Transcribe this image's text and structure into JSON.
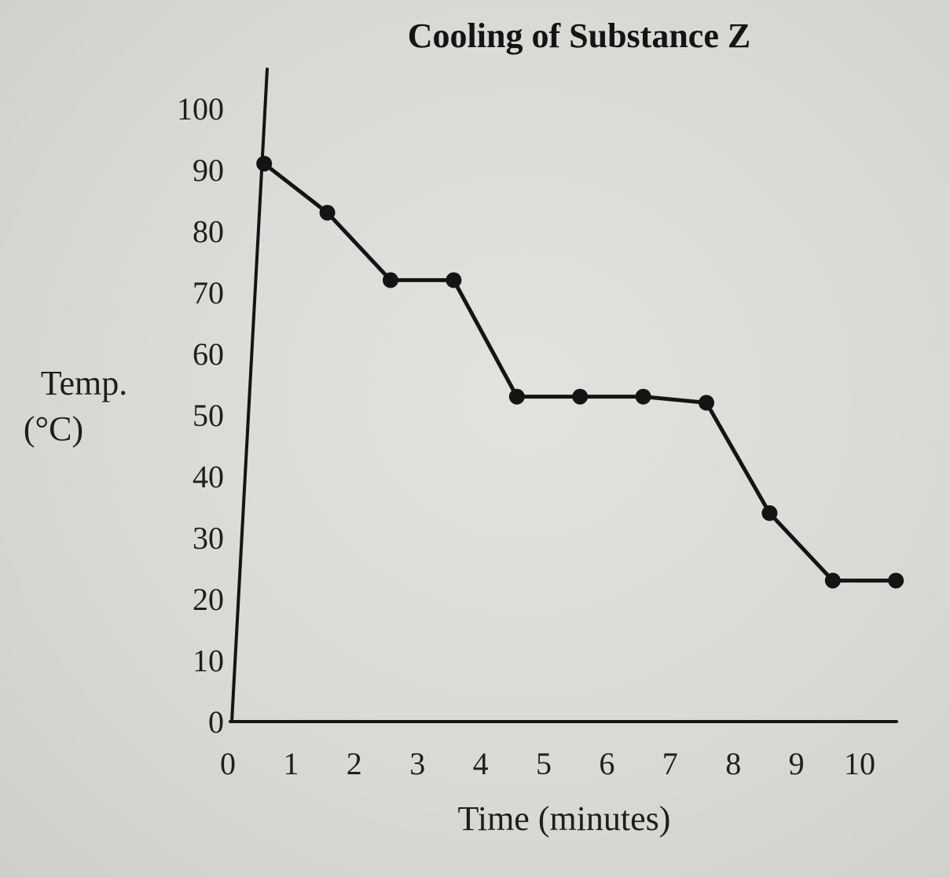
{
  "chart_data": {
    "type": "line",
    "title": "Cooling of Substance Z",
    "xlabel": "Time (minutes)",
    "ylabel_lines": [
      "Temp.",
      "(°C)"
    ],
    "x_ticks": [
      0,
      1,
      2,
      3,
      4,
      5,
      6,
      7,
      8,
      9,
      10
    ],
    "y_ticks": [
      0,
      10,
      20,
      30,
      40,
      50,
      60,
      70,
      80,
      90,
      100
    ],
    "xlim": [
      0,
      10
    ],
    "ylim": [
      0,
      100
    ],
    "grid": false,
    "x": [
      0.5,
      1.5,
      2.5,
      3.5,
      4.5,
      5.5,
      6.5,
      7.5,
      8.5,
      9.5,
      10.5
    ],
    "y": [
      91,
      83,
      72,
      72,
      53,
      53,
      53,
      52,
      34,
      23,
      23
    ],
    "colors": {
      "line": "#141414",
      "marker": "#141414",
      "axis": "#141414"
    }
  }
}
